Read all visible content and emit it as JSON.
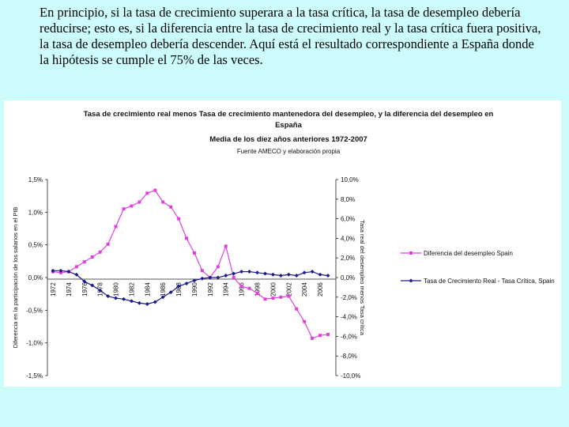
{
  "slide": {
    "paragraph": "En principio, si la tasa de crecimiento superara a la tasa crítica, la tasa de desempleo debería reducirse; esto es, si la diferencia entre la tasa de crecimiento real y la tasa crítica fuera positiva, la tasa de desempleo debería descender. Aquí está el resultado correspondiente a España donde la hipótesis se cumple el 75% de las veces."
  },
  "chart_data": {
    "type": "line",
    "title": "Tasa de crecimiento real menos Tasa de crecimiento mantenedora del desempleo, y la diferencia del desempleo en España",
    "subtitle": "Media de los diez años anteriores 1972-2007",
    "source": "Fuente AMECO y elaboración propia",
    "ylabel_left": "Diferencia en la participación de los salarios en el PIB",
    "ylabel_right": "Tasa real del desempleo menos Tasa crítica",
    "ylim_left": [
      -1.5,
      1.5
    ],
    "ylim_right": [
      -10,
      10
    ],
    "yticks_left": [
      "1,5%",
      "1,0%",
      "0,5%",
      "0,0%",
      "-0,5%",
      "-1,0%",
      "-1,5%"
    ],
    "yticks_right": [
      "10,0%",
      "8,0%",
      "6,0%",
      "4,0%",
      "2,0%",
      "0,0%",
      "-2,0%",
      "-4,0%",
      "-6,0%",
      "-8,0%",
      "-10,0%"
    ],
    "x": [
      1972,
      1973,
      1974,
      1975,
      1976,
      1977,
      1978,
      1979,
      1980,
      1981,
      1982,
      1983,
      1984,
      1985,
      1986,
      1987,
      1988,
      1989,
      1990,
      1991,
      1992,
      1993,
      1994,
      1995,
      1996,
      1997,
      1998,
      1999,
      2000,
      2001,
      2002,
      2003,
      2004,
      2005,
      2006,
      2007
    ],
    "xticks": [
      "1972",
      "1974",
      "1976",
      "1978",
      "1980",
      "1982",
      "1984",
      "1986",
      "1988",
      "1990",
      "1992",
      "1994",
      "1996",
      "1998",
      "2000",
      "2002",
      "2004",
      "2006"
    ],
    "series": [
      {
        "name": "Diferencia del desempleo Spain",
        "axis": "right",
        "color": "#e040e0",
        "marker": "square",
        "values": [
          0.6,
          0.5,
          0.6,
          1.1,
          1.6,
          2.1,
          2.6,
          3.4,
          5.2,
          7.0,
          7.3,
          7.7,
          8.6,
          8.9,
          7.7,
          7.2,
          6.0,
          4.0,
          2.5,
          0.7,
          0.0,
          1.1,
          3.2,
          0.0,
          -0.9,
          -1.1,
          -1.6,
          -2.2,
          -2.1,
          -2.0,
          -1.9,
          -3.2,
          -4.5,
          -6.2,
          -5.9,
          -5.8
        ]
      },
      {
        "name": "Tasa de Crecimiento Real - Tasa Crítica, Spain",
        "axis": "right",
        "color": "#1a1a8c",
        "marker": "diamond",
        "values": [
          0.7,
          0.7,
          0.6,
          0.3,
          -0.4,
          -0.8,
          -1.3,
          -1.9,
          -2.1,
          -2.2,
          -2.4,
          -2.6,
          -2.7,
          -2.5,
          -2.0,
          -1.5,
          -0.9,
          -0.6,
          -0.3,
          -0.1,
          0.0,
          0.0,
          0.2,
          0.4,
          0.6,
          0.6,
          0.5,
          0.4,
          0.3,
          0.2,
          0.3,
          0.2,
          0.5,
          0.6,
          0.3,
          0.2
        ]
      }
    ],
    "legend_position": "right",
    "grid": false
  }
}
